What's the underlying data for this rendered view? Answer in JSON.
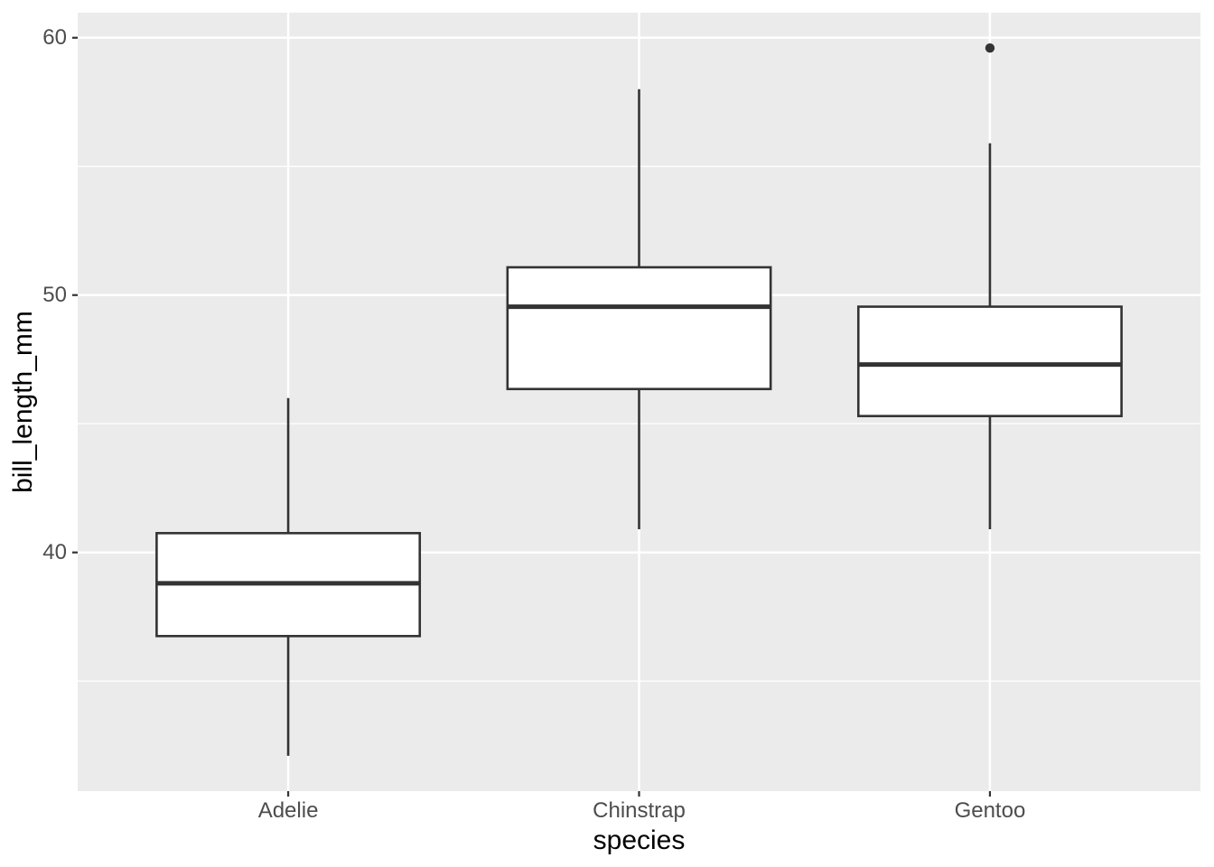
{
  "chart_data": {
    "type": "boxplot",
    "title": "",
    "xlabel": "species",
    "ylabel": "bill_length_mm",
    "categories": [
      "Adelie",
      "Chinstrap",
      "Gentoo"
    ],
    "series": [
      {
        "name": "Adelie",
        "whisker_low": 32.1,
        "q1": 36.75,
        "median": 38.8,
        "q3": 40.75,
        "whisker_high": 46.0,
        "outliers": []
      },
      {
        "name": "Chinstrap",
        "whisker_low": 40.9,
        "q1": 46.35,
        "median": 49.55,
        "q3": 51.08,
        "whisker_high": 58.0,
        "outliers": []
      },
      {
        "name": "Gentoo",
        "whisker_low": 40.9,
        "q1": 45.3,
        "median": 47.3,
        "q3": 49.55,
        "whisker_high": 55.9,
        "outliers": [
          59.6
        ]
      }
    ],
    "y_ticks": [
      40,
      50,
      60
    ],
    "y_minor_ticks": [
      35,
      45,
      55
    ],
    "ylim": [
      30.725,
      60.975
    ],
    "grid": "major-and-minor",
    "legend": "none",
    "colors": {
      "panel_background": "#EBEBEB",
      "gridline": "#FFFFFF",
      "box_stroke": "#333333",
      "box_fill": "#FFFFFF",
      "median": "#333333",
      "whisker": "#333333",
      "outlier": "#333333",
      "tick_mark": "#333333",
      "tick_label": "#4D4D4D",
      "axis_title": "#000000",
      "figure_background": "#FFFFFF"
    }
  }
}
